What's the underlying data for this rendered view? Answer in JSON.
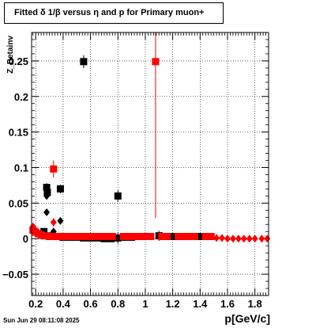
{
  "chart_data": {
    "type": "scatter",
    "title": "Fitted δ 1/β versus η and p for Primary muon+",
    "xlabel": "p[GeV/c]",
    "ylabel": "Z_Betainv",
    "xlim": [
      0.17,
      1.9
    ],
    "ylim": [
      -0.08,
      0.29
    ],
    "grid": true,
    "x_ticks": [
      0.2,
      0.4,
      0.6,
      0.8,
      1,
      1.2,
      1.4,
      1.6,
      1.8
    ],
    "x_tick_labels": [
      "0.2",
      "0.4",
      "0.6",
      "0.8",
      "1",
      "1.2",
      "1.4",
      "1.6",
      "1.8"
    ],
    "y_ticks": [
      -0.05,
      0,
      0.05,
      0.1,
      0.15,
      0.2,
      0.25
    ],
    "y_tick_labels": [
      "−0.05",
      "0",
      "0.05",
      "0.1",
      "0.15",
      "0.2",
      "0.25"
    ],
    "series": [
      {
        "color": "#000000",
        "marker": "square",
        "points": [
          {
            "x": 0.28,
            "y": 0.072,
            "err": 0.006
          },
          {
            "x": 0.285,
            "y": 0.065,
            "err": 0.005
          },
          {
            "x": 0.38,
            "y": 0.07,
            "err": 0.006
          },
          {
            "x": 0.55,
            "y": 0.249,
            "err": 0.009
          },
          {
            "x": 0.8,
            "y": 0.06,
            "err": 0.008
          },
          {
            "x": 0.26,
            "y": 0.01,
            "err": 0.003
          },
          {
            "x": 0.3,
            "y": 0.004,
            "err": 0.003
          },
          {
            "x": 0.35,
            "y": 0.003,
            "err": 0.003
          },
          {
            "x": 0.4,
            "y": 0.002,
            "err": 0.003
          },
          {
            "x": 0.45,
            "y": 0.002,
            "err": 0.003
          },
          {
            "x": 0.5,
            "y": 0.002,
            "err": 0.003
          },
          {
            "x": 0.55,
            "y": 0.001,
            "err": 0.004
          },
          {
            "x": 0.6,
            "y": 0.001,
            "err": 0.004
          },
          {
            "x": 0.65,
            "y": 0.001,
            "err": 0.004
          },
          {
            "x": 0.7,
            "y": 0.0,
            "err": 0.004
          },
          {
            "x": 0.75,
            "y": 0.0,
            "err": 0.005
          },
          {
            "x": 0.8,
            "y": 0.001,
            "err": 0.008
          },
          {
            "x": 0.85,
            "y": 0.002,
            "err": 0.005
          },
          {
            "x": 0.9,
            "y": 0.002,
            "err": 0.004
          },
          {
            "x": 1.0,
            "y": 0.003,
            "err": 0.005
          },
          {
            "x": 1.1,
            "y": 0.004,
            "err": 0.007
          },
          {
            "x": 1.2,
            "y": 0.003,
            "err": 0.005
          },
          {
            "x": 1.3,
            "y": 0.003,
            "err": 0.005
          },
          {
            "x": 1.4,
            "y": 0.003,
            "err": 0.005
          }
        ]
      },
      {
        "color": "#000000",
        "marker": "diamond",
        "points": [
          {
            "x": 0.28,
            "y": 0.06,
            "err": 0.005
          },
          {
            "x": 0.28,
            "y": 0.037,
            "err": 0.004
          },
          {
            "x": 0.38,
            "y": 0.025,
            "err": 0.005
          },
          {
            "x": 0.33,
            "y": 0.01,
            "err": 0.003
          }
        ]
      },
      {
        "color": "#ff0000",
        "marker": "square",
        "points": [
          {
            "x": 0.33,
            "y": 0.098,
            "err": 0.012
          },
          {
            "x": 1.075,
            "y": 0.249,
            "err": 0.22
          },
          {
            "x": 0.18,
            "y": 0.012,
            "err": 0.003
          },
          {
            "x": 0.2,
            "y": 0.009,
            "err": 0.003
          },
          {
            "x": 0.22,
            "y": 0.007,
            "err": 0.002
          },
          {
            "x": 0.24,
            "y": 0.005,
            "err": 0.002
          },
          {
            "x": 0.26,
            "y": 0.004,
            "err": 0.002
          },
          {
            "x": 0.28,
            "y": 0.004,
            "err": 0.002
          },
          {
            "x": 0.3,
            "y": 0.003,
            "err": 0.002
          },
          {
            "x": 0.33,
            "y": 0.003,
            "err": 0.002
          },
          {
            "x": 0.36,
            "y": 0.003,
            "err": 0.002
          },
          {
            "x": 0.4,
            "y": 0.003,
            "err": 0.002
          },
          {
            "x": 0.44,
            "y": 0.003,
            "err": 0.002
          },
          {
            "x": 0.48,
            "y": 0.003,
            "err": 0.002
          },
          {
            "x": 0.52,
            "y": 0.003,
            "err": 0.002
          },
          {
            "x": 0.56,
            "y": 0.003,
            "err": 0.002
          },
          {
            "x": 0.6,
            "y": 0.003,
            "err": 0.002
          },
          {
            "x": 0.64,
            "y": 0.003,
            "err": 0.002
          },
          {
            "x": 0.68,
            "y": 0.003,
            "err": 0.002
          },
          {
            "x": 0.72,
            "y": 0.003,
            "err": 0.002
          },
          {
            "x": 0.76,
            "y": 0.003,
            "err": 0.002
          },
          {
            "x": 0.84,
            "y": 0.003,
            "err": 0.002
          },
          {
            "x": 0.88,
            "y": 0.003,
            "err": 0.002
          },
          {
            "x": 0.92,
            "y": 0.003,
            "err": 0.002
          },
          {
            "x": 0.96,
            "y": 0.003,
            "err": 0.002
          },
          {
            "x": 1.0,
            "y": 0.003,
            "err": 0.002
          },
          {
            "x": 1.04,
            "y": 0.003,
            "err": 0.002
          },
          {
            "x": 1.12,
            "y": 0.003,
            "err": 0.002
          },
          {
            "x": 1.16,
            "y": 0.003,
            "err": 0.002
          },
          {
            "x": 1.24,
            "y": 0.003,
            "err": 0.002
          },
          {
            "x": 1.28,
            "y": 0.003,
            "err": 0.002
          },
          {
            "x": 1.32,
            "y": 0.003,
            "err": 0.002
          },
          {
            "x": 1.36,
            "y": 0.003,
            "err": 0.002
          },
          {
            "x": 1.44,
            "y": 0.003,
            "err": 0.002
          },
          {
            "x": 1.48,
            "y": 0.003,
            "err": 0.002
          }
        ]
      },
      {
        "color": "#ff0000",
        "marker": "diamond",
        "points": [
          {
            "x": 0.33,
            "y": 0.023,
            "err": 0.006
          },
          {
            "x": 0.18,
            "y": 0.017,
            "err": 0.003
          },
          {
            "x": 0.19,
            "y": 0.013,
            "err": 0.003
          },
          {
            "x": 0.21,
            "y": 0.01,
            "err": 0.002
          },
          {
            "x": 1.52,
            "y": 0.001,
            "err": 0.002
          },
          {
            "x": 1.56,
            "y": 0.001,
            "err": 0.002
          },
          {
            "x": 1.6,
            "y": 0.0,
            "err": 0.002
          },
          {
            "x": 1.64,
            "y": 0.0,
            "err": 0.002
          },
          {
            "x": 1.68,
            "y": 0.0,
            "err": 0.002
          },
          {
            "x": 1.72,
            "y": 0.0,
            "err": 0.002
          },
          {
            "x": 1.76,
            "y": 0.0,
            "err": 0.002
          },
          {
            "x": 1.8,
            "y": 0.0,
            "err": 0.002
          },
          {
            "x": 1.85,
            "y": 0.0,
            "err": 0.002
          },
          {
            "x": 1.89,
            "y": 0.0,
            "err": 0.002
          }
        ]
      }
    ]
  },
  "footer": {
    "date_stamp": "Sun Jun 29 08:11:08 2025"
  }
}
